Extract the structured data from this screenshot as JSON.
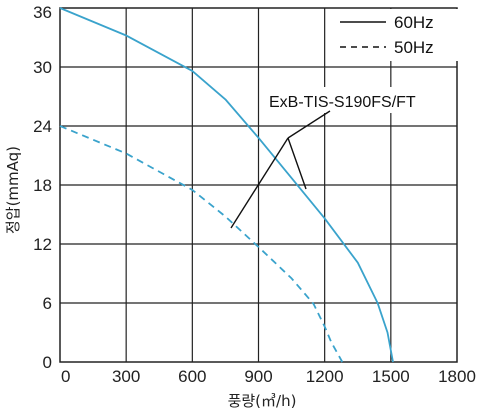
{
  "chart_data": {
    "type": "line",
    "xlabel": "풍량(㎥/h)",
    "ylabel": "정압(mmAq)",
    "xlim": [
      0,
      1800
    ],
    "ylim": [
      0,
      36
    ],
    "x_ticks": [
      "0",
      "300",
      "600",
      "900",
      "1200",
      "1500",
      "1800"
    ],
    "y_ticks": [
      "0",
      "6",
      "12",
      "18",
      "24",
      "30",
      "36"
    ],
    "grid": true,
    "legend_position": "top-right",
    "line_color": "#3aa3cc",
    "series": [
      {
        "name": "60Hz",
        "style": "solid",
        "x": [
          0,
          300,
          600,
          750,
          900,
          1050,
          1200,
          1350,
          1440,
          1485,
          1510
        ],
        "y": [
          36,
          33.2,
          29.6,
          26.7,
          22.8,
          18.7,
          14.6,
          10.1,
          6.0,
          3.0,
          0
        ]
      },
      {
        "name": "50Hz",
        "style": "dashed",
        "x": [
          0,
          300,
          600,
          750,
          900,
          1050,
          1150,
          1200,
          1230,
          1260,
          1280
        ],
        "y": [
          24,
          21.2,
          17.5,
          14.8,
          11.7,
          8.5,
          5.9,
          3.6,
          2.0,
          0.8,
          0
        ]
      }
    ],
    "annotation": "ExB-TIS-S190FS/FT"
  }
}
